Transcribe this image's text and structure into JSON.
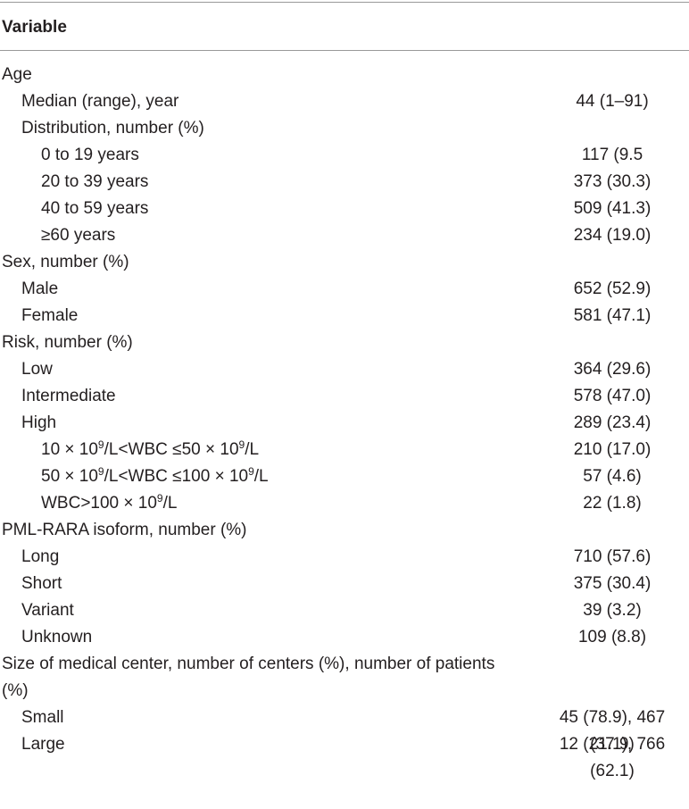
{
  "table": {
    "header": "Variable",
    "rows": [
      {
        "label": "Age",
        "indent": 0,
        "value": ""
      },
      {
        "label": "Median (range), year",
        "indent": 1,
        "value": "44 (1–91)"
      },
      {
        "label": "Distribution, number (%)",
        "indent": 1,
        "value": ""
      },
      {
        "label": "0 to 19 years",
        "indent": 2,
        "value": "117 (9.5"
      },
      {
        "label": "20 to 39 years",
        "indent": 2,
        "value": "373 (30.3)"
      },
      {
        "label": "40 to 59 years",
        "indent": 2,
        "value": "509 (41.3)"
      },
      {
        "label": "≥60 years",
        "indent": 2,
        "value": "234 (19.0)"
      },
      {
        "label": "Sex, number (%)",
        "indent": 0,
        "value": ""
      },
      {
        "label": "Male",
        "indent": 1,
        "value": "652 (52.9)"
      },
      {
        "label": "Female",
        "indent": 1,
        "value": "581 (47.1)"
      },
      {
        "label": "Risk, number (%)",
        "indent": 0,
        "value": ""
      },
      {
        "label": "Low",
        "indent": 1,
        "value": "364 (29.6)"
      },
      {
        "label": "Intermediate",
        "indent": 1,
        "value": "578 (47.0)"
      },
      {
        "label": "High",
        "indent": 1,
        "value": "289 (23.4)"
      },
      {
        "label": [
          "10 × 10",
          "9",
          "/L<WBC ≤50 × 10",
          "9",
          "/L"
        ],
        "indent": 2,
        "value": "210 (17.0)"
      },
      {
        "label": [
          "50 × 10",
          "9",
          "/L<WBC ≤100 × 10",
          "9",
          "/L"
        ],
        "indent": 2,
        "value": "57 (4.6)"
      },
      {
        "label": [
          "WBC>100 × 10",
          "9",
          "/L"
        ],
        "indent": 2,
        "value": "22 (1.8)"
      },
      {
        "label": "PML-RARA isoform, number (%)",
        "indent": 0,
        "value": ""
      },
      {
        "label": "Long",
        "indent": 1,
        "value": "710 (57.6)"
      },
      {
        "label": "Short",
        "indent": 1,
        "value": "375 (30.4)"
      },
      {
        "label": "Variant",
        "indent": 1,
        "value": "39 (3.2)"
      },
      {
        "label": "Unknown",
        "indent": 1,
        "value": "109 (8.8)"
      },
      {
        "label": "Size of medical center, number of centers (%), number of patients (%)",
        "indent": 0,
        "value": ""
      },
      {
        "label": "Small",
        "indent": 1,
        "value": "45 (78.9), 467 (37.9)"
      },
      {
        "label": "Large",
        "indent": 1,
        "value": "12 (21.1), 766 (62.1)"
      }
    ]
  }
}
